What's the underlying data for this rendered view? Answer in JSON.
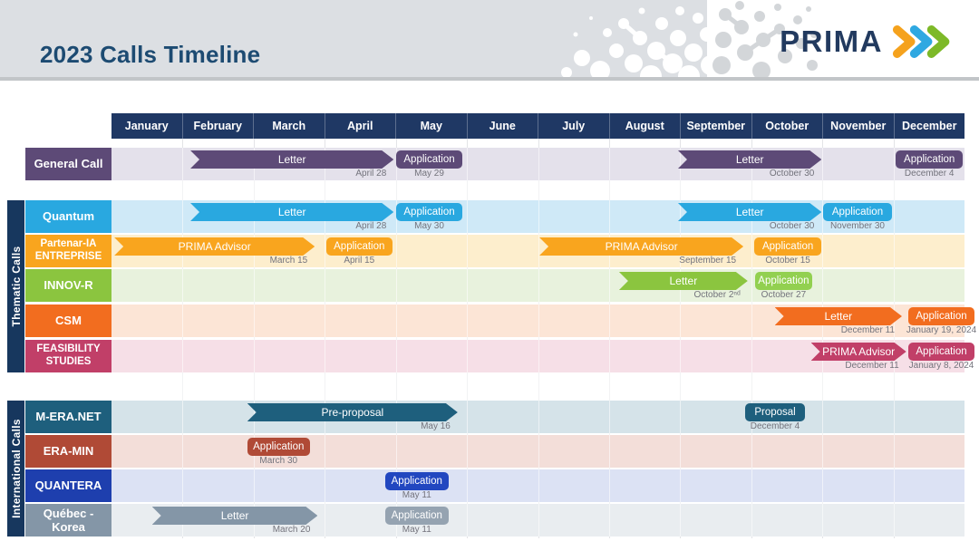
{
  "header": {
    "title": "2023 Calls Timeline",
    "brand": "PRIMA"
  },
  "chart_data": {
    "type": "timeline",
    "x_unit": "months",
    "months": [
      "January",
      "February",
      "March",
      "April",
      "May",
      "June",
      "July",
      "August",
      "September",
      "October",
      "November",
      "December"
    ],
    "sections": [
      {
        "id": "thematic",
        "label": "Thematic Calls"
      },
      {
        "id": "international",
        "label": "International Calls"
      }
    ],
    "accent_colors": {
      "banner_navy": "#1f3864",
      "sidebar_navy": "#17375e",
      "date_gray": "#73737c"
    },
    "rows": [
      {
        "id": "general-call",
        "section": null,
        "label_lines": [
          "General Call"
        ],
        "colors": {
          "main": "#5d4a77",
          "band": "#e4e1eb"
        },
        "items": [
          {
            "type": "arrow",
            "text": "Letter",
            "date": "April 28",
            "start": 1.11,
            "end": 3.97
          },
          {
            "type": "box",
            "text": "Application",
            "date": "May 29",
            "start": 4.0,
            "end": 4.94
          },
          {
            "type": "arrow",
            "text": "Letter",
            "date": "October 30",
            "start": 7.97,
            "end": 9.99
          },
          {
            "type": "box",
            "text": "Application",
            "date": "December 4",
            "start": 11.03,
            "end": 11.98
          }
        ]
      },
      {
        "id": "quantum",
        "section": "thematic",
        "label_lines": [
          "Quantum"
        ],
        "colors": {
          "main": "#29a8e0",
          "band": "#cfe9f7"
        },
        "items": [
          {
            "type": "arrow",
            "text": "Letter",
            "date": "April 28",
            "start": 1.11,
            "end": 3.97
          },
          {
            "type": "box",
            "text": "Application",
            "date": "May 30",
            "start": 4.0,
            "end": 4.94
          },
          {
            "type": "arrow",
            "text": "Letter",
            "date": "October 30",
            "start": 7.97,
            "end": 9.99
          },
          {
            "type": "box",
            "text": "Application",
            "date": "November 30",
            "start": 10.01,
            "end": 10.98
          }
        ]
      },
      {
        "id": "partenar-ia-entreprise",
        "section": "thematic",
        "label_lines": [
          "Partenar-IA",
          "ENTREPRISE"
        ],
        "colors": {
          "main": "#f9a51e",
          "band": "#fdeecd"
        },
        "items": [
          {
            "type": "arrow",
            "text": "PRIMA Advisor",
            "date": "March 15",
            "start": 0.04,
            "end": 2.86
          },
          {
            "type": "box",
            "text": "Application",
            "date": "April 15",
            "start": 3.02,
            "end": 3.95
          },
          {
            "type": "arrow",
            "text": "PRIMA Advisor",
            "date": "September 15",
            "start": 6.02,
            "end": 8.89
          },
          {
            "type": "box",
            "text": "Application",
            "date": "October 15",
            "start": 9.04,
            "end": 9.99
          }
        ]
      },
      {
        "id": "innov-r",
        "section": "thematic",
        "label_lines": [
          "INNOV-R"
        ],
        "colors": {
          "main": "#8bc53f",
          "band": "#e8f2dd"
        },
        "items": [
          {
            "type": "arrow",
            "text": "Letter",
            "date": "October 2ⁿᵈ",
            "start": 7.14,
            "end": 8.95
          },
          {
            "type": "box",
            "text": "Application",
            "date": "October 27",
            "start": 9.05,
            "end": 9.86,
            "color": "#92d050"
          }
        ]
      },
      {
        "id": "csm",
        "section": "thematic",
        "label_lines": [
          "CSM"
        ],
        "colors": {
          "main": "#f26d1f",
          "band": "#fce5d6"
        },
        "items": [
          {
            "type": "arrow",
            "text": "Letter",
            "date": "December 11",
            "start": 9.33,
            "end": 11.12
          },
          {
            "type": "box",
            "text": "Application",
            "date": "January 19, 2024",
            "start": 11.21,
            "end": 12.14
          }
        ]
      },
      {
        "id": "feasibility-studies",
        "section": "thematic",
        "label_lines": [
          "FEASIBILITY",
          "STUDIES"
        ],
        "colors": {
          "main": "#c13f68",
          "band": "#f6dfe7"
        },
        "items": [
          {
            "type": "arrow",
            "text": "PRIMA Advisor",
            "date": "December 11",
            "start": 9.84,
            "end": 11.18
          },
          {
            "type": "box",
            "text": "Application",
            "date": "January 8, 2024",
            "start": 11.21,
            "end": 12.14
          }
        ]
      },
      {
        "id": "m-era-net",
        "section": "international",
        "label_lines": [
          "M-ERA.NET"
        ],
        "colors": {
          "main": "#1e5f7d",
          "band": "#d5e3e9"
        },
        "items": [
          {
            "type": "arrow",
            "text": "Pre-proposal",
            "date": "May 16",
            "start": 1.91,
            "end": 4.87
          },
          {
            "type": "box",
            "text": "Proposal",
            "date": "December 4",
            "start": 8.91,
            "end": 9.76
          }
        ]
      },
      {
        "id": "era-min",
        "section": "international",
        "label_lines": [
          "ERA-MIN"
        ],
        "colors": {
          "main": "#b04a36",
          "band": "#f3ded9"
        },
        "items": [
          {
            "type": "box",
            "text": "Application",
            "date": "March 30",
            "start": 1.91,
            "end": 2.79
          }
        ]
      },
      {
        "id": "quantera",
        "section": "international",
        "label_lines": [
          "QUANTERA"
        ],
        "colors": {
          "main": "#1e3fae",
          "band": "#dce2f4"
        },
        "items": [
          {
            "type": "box",
            "text": "Application",
            "date": "May 11",
            "start": 3.85,
            "end": 4.74,
            "color": "#2247c0"
          }
        ]
      },
      {
        "id": "quebec-korea",
        "section": "international",
        "label_lines": [
          "Québec - Korea"
        ],
        "colors": {
          "main": "#8496a7",
          "band": "#e9edf0"
        },
        "items": [
          {
            "type": "arrow",
            "text": "Letter",
            "date": "March 20",
            "start": 0.57,
            "end": 2.9
          },
          {
            "type": "box",
            "text": "Application",
            "date": "May 11",
            "start": 3.85,
            "end": 4.74,
            "color": "#95a3b1"
          }
        ]
      }
    ]
  }
}
